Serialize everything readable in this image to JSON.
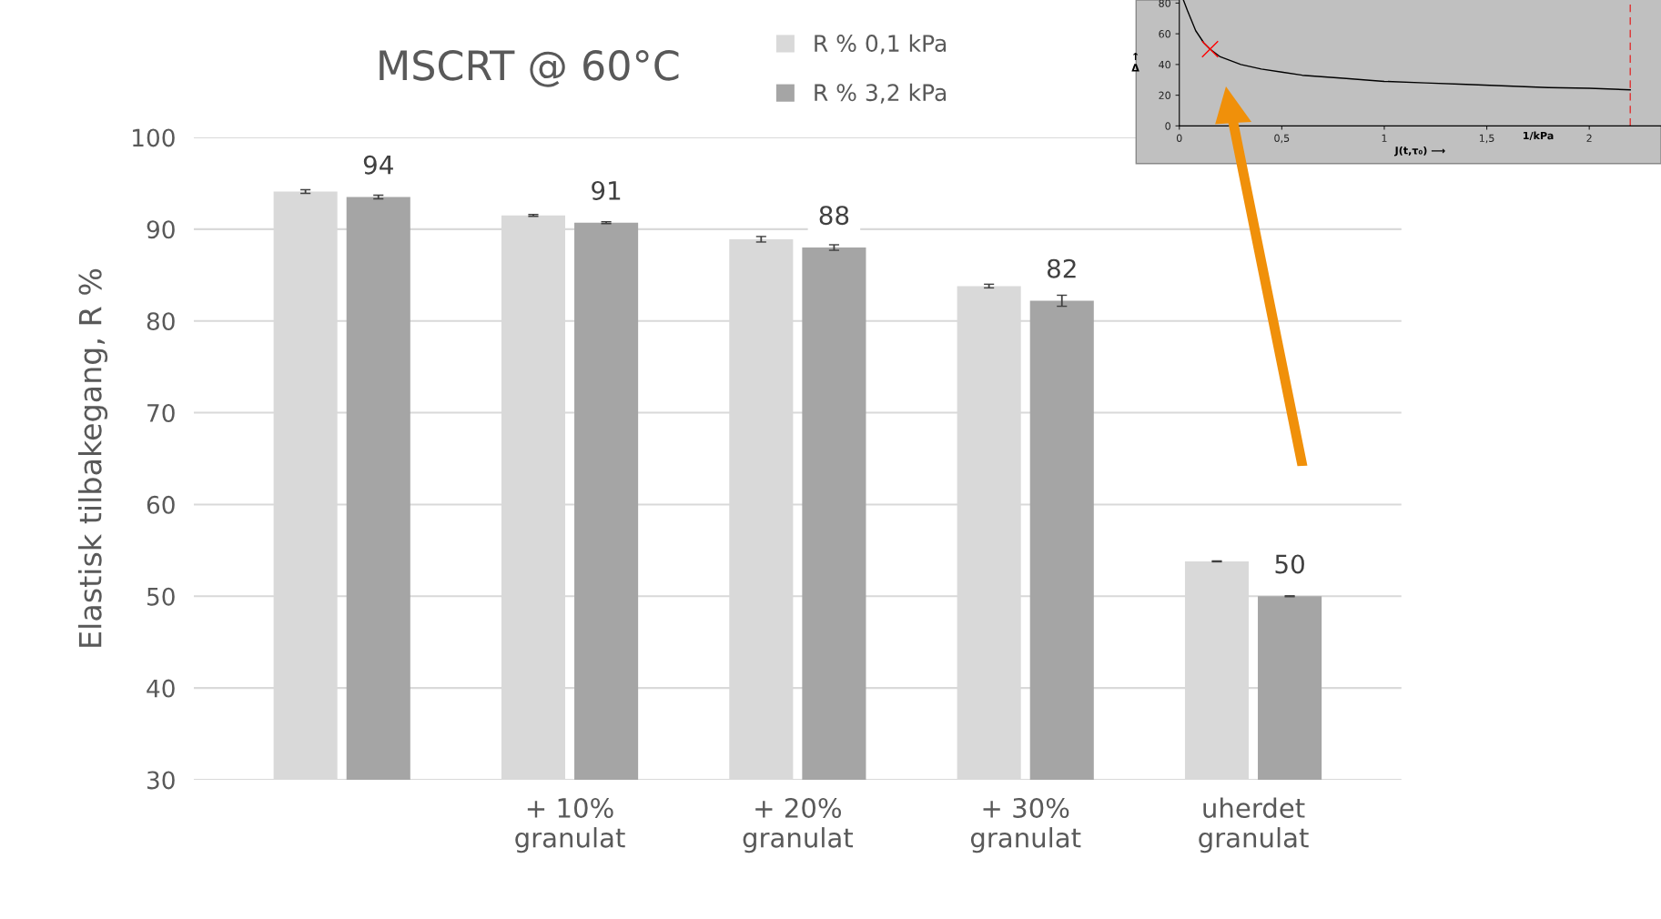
{
  "chart_data": [
    {
      "type": "bar",
      "title": "MSCRT @ 60°C",
      "ylabel": "Elastisk tilbakegang, R %",
      "categories": [
        null,
        "+ 10%\ngranulat",
        "+ 20%\ngranulat",
        "+ 30%\ngranulat",
        "uherdet\ngranulat"
      ],
      "series": [
        {
          "name": "R % 0,1 kPa",
          "color": "#d9d9d9",
          "values": [
            94.1,
            91.5,
            88.9,
            83.8,
            53.8
          ],
          "errors": [
            0.2,
            0.1,
            0.3,
            0.2,
            0.05
          ]
        },
        {
          "name": "R % 3,2 kPa",
          "color": "#a5a5a5",
          "values": [
            93.5,
            90.7,
            88.0,
            82.2,
            50.0
          ],
          "errors": [
            0.2,
            0.1,
            0.3,
            0.6,
            0.05
          ],
          "value_labels": [
            "94",
            "91",
            "88",
            "82",
            "50"
          ]
        }
      ],
      "ylim": [
        30,
        100
      ],
      "yticks": [
        30,
        40,
        50,
        60,
        70,
        80,
        90,
        100
      ],
      "grid": "y",
      "legend": "top"
    },
    {
      "type": "line",
      "xlabel": "J(t,τ₀) ⟶",
      "ylabel": "↑\nΔ",
      "series": [
        {
          "color": "#000000",
          "x": [
            0.02,
            0.04,
            0.08,
            0.12,
            0.15,
            0.2,
            0.3,
            0.4,
            0.5,
            0.6,
            0.8,
            1.0,
            1.2,
            1.4,
            1.6,
            1.8,
            2.0,
            2.2
          ],
          "values": [
            82,
            75,
            62,
            54,
            50,
            45,
            40,
            37,
            35,
            33,
            31,
            29,
            28,
            27,
            26,
            25,
            24.5,
            23.5
          ]
        },
        {
          "type": "scatter",
          "marker": "cross",
          "color": "#ff0000",
          "x": [
            0.15
          ],
          "values": [
            50
          ]
        }
      ],
      "xlim": [
        0,
        2.35
      ],
      "xticks": [
        0,
        {
          "value": 0.5,
          "label": "0,5"
        },
        1,
        {
          "value": 1.5,
          "label": "1,5"
        },
        2
      ],
      "annotations": [
        "1/kPa"
      ],
      "ylim": [
        0,
        82
      ],
      "yticks": [
        0,
        20,
        40,
        60,
        80
      ],
      "ref_lines": [
        {
          "axis": "x",
          "value": 2.2,
          "color": "#e03030",
          "line_style": "dashed"
        }
      ]
    }
  ]
}
